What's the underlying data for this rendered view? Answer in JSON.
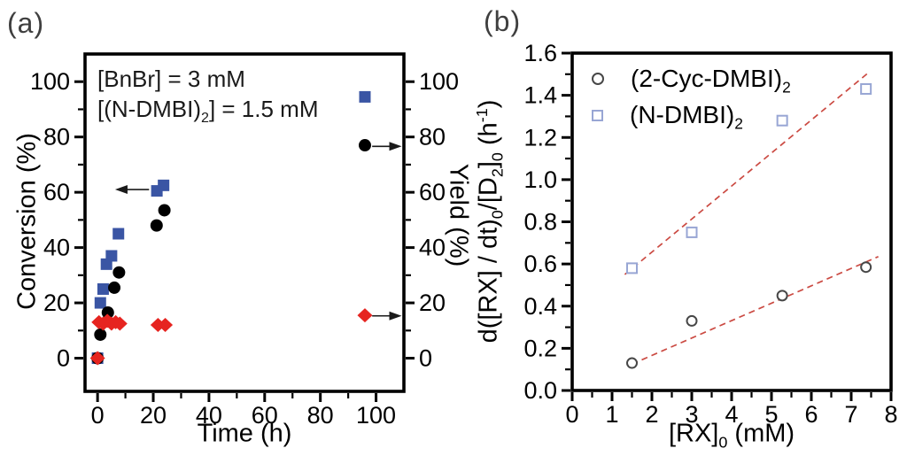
{
  "figure": {
    "panel_a_letter": "(a)",
    "panel_b_letter": "(b)",
    "background": "#ffffff",
    "frame_color": "#000000",
    "fit_line_color": "#CB4A42"
  },
  "chart_data": [
    {
      "id": "a",
      "type": "scatter",
      "xlabel": "Time (h)",
      "ylabel_left": "Conversion (%)",
      "ylabel_right": "Yield (%)",
      "xlim": [
        -4.5,
        110
      ],
      "ylim": [
        -12,
        110
      ],
      "grid": false,
      "x_major_ticks": [
        0,
        20,
        40,
        60,
        80,
        100
      ],
      "x_minor_ticks": [
        10,
        30,
        50,
        70,
        90
      ],
      "y_major_ticks": [
        0,
        20,
        40,
        60,
        80,
        100
      ],
      "y_minor_ticks": [
        10,
        30,
        50,
        70,
        90
      ],
      "annotation_lines": [
        "[BnBr] = 3 mM",
        "[(N-DMBI)_{2}] = 1.5 mM"
      ],
      "series": [
        {
          "name": "conversion-blue-squares",
          "marker": "square-filled",
          "color": "#3A55A4",
          "points": [
            [
              0,
              0
            ],
            [
              1,
              20
            ],
            [
              2,
              25
            ],
            [
              3.2,
              34
            ],
            [
              5,
              37
            ],
            [
              7.5,
              45
            ],
            [
              21.3,
              60.5
            ],
            [
              23.7,
              62.5
            ],
            [
              96,
              94.5
            ]
          ]
        },
        {
          "name": "yield-black-circles",
          "marker": "circle-filled",
          "color": "#000000",
          "points": [
            [
              0,
              0
            ],
            [
              1,
              8.5
            ],
            [
              3.7,
              16.5
            ],
            [
              6,
              25.5
            ],
            [
              7.7,
              31
            ],
            [
              21.2,
              48
            ],
            [
              24,
              53.5
            ],
            [
              96,
              77
            ]
          ]
        },
        {
          "name": "byproduct-red-diamonds",
          "marker": "diamond-filled",
          "color": "#E62420",
          "points": [
            [
              0,
              0
            ],
            [
              0.5,
              13
            ],
            [
              2,
              12.5
            ],
            [
              3.5,
              13.5
            ],
            [
              5,
              12.5
            ],
            [
              6.5,
              13
            ],
            [
              8,
              12.5
            ],
            [
              21.7,
              12
            ],
            [
              24.3,
              12
            ],
            [
              96,
              15.5
            ]
          ]
        }
      ],
      "arrows": [
        {
          "y": 61,
          "x_from": 18.5,
          "x_to": 6.3
        },
        {
          "y": 76.6,
          "x_from": 98.6,
          "x_to": 109.2
        },
        {
          "y": 15.3,
          "x_from": 98.6,
          "x_to": 109.2
        }
      ]
    },
    {
      "id": "b",
      "type": "scatter",
      "xlabel": "[RX]_{0} (mM)",
      "ylabel": "d([RX] / dt)_{0}/[D_{2}]_{0} (h^{-1})",
      "xlim": [
        0,
        8
      ],
      "ylim": [
        0,
        1.6
      ],
      "grid": false,
      "x_major_ticks": [
        0,
        1,
        2,
        3,
        4,
        5,
        6,
        7,
        8
      ],
      "x_minor_ticks": [
        0.5,
        1.5,
        2.5,
        3.5,
        4.5,
        5.5,
        6.5,
        7.5
      ],
      "y_major_ticks": [
        0.0,
        0.2,
        0.4,
        0.6,
        0.8,
        1.0,
        1.2,
        1.4,
        1.6
      ],
      "y_minor_ticks": [
        0.1,
        0.3,
        0.5,
        0.7,
        0.9,
        1.1,
        1.3,
        1.5
      ],
      "y_tick_decimals": 1,
      "legend": [
        {
          "label": "(2-Cyc-DMBI)_{2}",
          "marker": "circle-open",
          "color": "#474747"
        },
        {
          "label": "(N-DMBI)_{2}",
          "marker": "square-open",
          "color": "#98A6D4"
        }
      ],
      "series": [
        {
          "name": "2-cyc-dmbi-open-circles",
          "marker": "circle-open",
          "color": "#474747",
          "points": [
            [
              1.5,
              0.13
            ],
            [
              3,
              0.33
            ],
            [
              5.27,
              0.45
            ],
            [
              7.37,
              0.585
            ]
          ]
        },
        {
          "name": "n-dmbi-open-squares",
          "marker": "square-open",
          "color": "#98A6D4",
          "points": [
            [
              1.5,
              0.58
            ],
            [
              3,
              0.75
            ],
            [
              5.27,
              1.28
            ],
            [
              7.37,
              1.43
            ]
          ]
        }
      ],
      "trend_lines": [
        {
          "name": "fit-2-cyc-dmbi",
          "color": "#CB4A42",
          "x1": 1.5,
          "y1": 0.125,
          "x2": 7.68,
          "y2": 0.635
        },
        {
          "name": "fit-n-dmbi",
          "color": "#CB4A42",
          "x1": 1.32,
          "y1": 0.55,
          "x2": 7.45,
          "y2": 1.51
        }
      ]
    }
  ]
}
